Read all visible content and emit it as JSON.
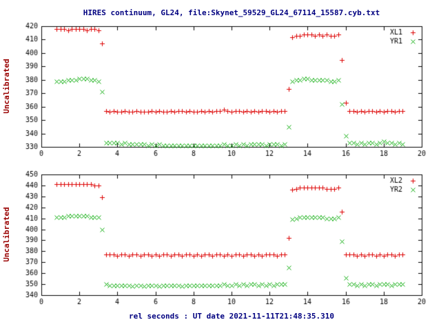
{
  "chart_data": [
    {
      "type": "scatter",
      "title": "HIRES continuum, GL24, file:Skynet_59529_GL24_67114_15587.cyb.txt",
      "ylabel": "Uncalibrated",
      "xlabel": "",
      "xlim": [
        0,
        20
      ],
      "ylim": [
        330,
        420
      ],
      "xticks": [
        0,
        2,
        4,
        6,
        8,
        10,
        12,
        14,
        16,
        18,
        20
      ],
      "yticks": [
        330,
        340,
        350,
        360,
        370,
        380,
        390,
        400,
        410,
        420
      ],
      "legend_position": "top-right",
      "grid": false,
      "x": [
        0.8,
        1.0,
        1.2,
        1.4,
        1.6,
        1.8,
        2.0,
        2.2,
        2.4,
        2.6,
        2.8,
        3.0,
        3.2,
        3.4,
        3.6,
        3.8,
        4.0,
        4.2,
        4.4,
        4.6,
        4.8,
        5.0,
        5.2,
        5.4,
        5.6,
        5.8,
        6.0,
        6.2,
        6.4,
        6.6,
        6.8,
        7.0,
        7.2,
        7.4,
        7.6,
        7.8,
        8.0,
        8.2,
        8.4,
        8.6,
        8.8,
        9.0,
        9.2,
        9.4,
        9.6,
        9.8,
        10.0,
        10.2,
        10.4,
        10.6,
        10.8,
        11.0,
        11.2,
        11.4,
        11.6,
        11.8,
        12.0,
        12.2,
        12.4,
        12.6,
        12.8,
        13.0,
        13.2,
        13.4,
        13.6,
        13.8,
        14.0,
        14.2,
        14.4,
        14.6,
        14.8,
        15.0,
        15.2,
        15.4,
        15.6,
        15.8,
        16.0,
        16.2,
        16.4,
        16.6,
        16.8,
        17.0,
        17.2,
        17.4,
        17.6,
        17.8,
        18.0,
        18.2,
        18.4,
        18.6,
        18.8,
        19.0
      ],
      "series": [
        {
          "name": "XL1",
          "marker": "plus",
          "color": "#dd0000",
          "y": [
            418,
            418,
            418,
            417,
            418,
            418,
            418,
            418,
            417,
            418,
            418,
            417,
            407,
            357,
            356,
            357,
            356,
            356,
            357,
            356,
            356,
            357,
            356,
            356,
            356,
            357,
            356,
            357,
            356,
            356,
            357,
            356,
            357,
            357,
            356,
            357,
            356,
            356,
            357,
            356,
            357,
            356,
            357,
            357,
            358,
            357,
            356,
            357,
            357,
            356,
            357,
            356,
            357,
            356,
            357,
            357,
            356,
            357,
            356,
            357,
            357,
            373,
            412,
            413,
            413,
            414,
            414,
            414,
            413,
            414,
            413,
            414,
            413,
            413,
            414,
            395,
            363,
            357,
            357,
            356,
            357,
            356,
            357,
            357,
            356,
            357,
            356,
            357,
            357,
            356,
            357,
            357
          ]
        },
        {
          "name": "YR1",
          "marker": "cross",
          "color": "#00a800",
          "y": [
            379,
            379,
            379,
            380,
            380,
            380,
            381,
            381,
            381,
            380,
            380,
            379,
            371,
            333,
            333,
            333,
            333,
            332,
            333,
            332,
            332,
            332,
            332,
            332,
            331,
            332,
            331,
            332,
            331,
            331,
            331,
            331,
            331,
            331,
            331,
            331,
            331,
            331,
            331,
            331,
            331,
            331,
            331,
            331,
            332,
            331,
            331,
            332,
            331,
            332,
            331,
            332,
            332,
            332,
            332,
            331,
            332,
            332,
            332,
            331,
            332,
            345,
            379,
            380,
            380,
            381,
            381,
            380,
            380,
            380,
            380,
            380,
            379,
            379,
            380,
            362,
            338,
            333,
            333,
            332,
            333,
            332,
            333,
            333,
            332,
            333,
            334,
            333,
            333,
            332,
            333,
            332
          ]
        }
      ]
    },
    {
      "type": "scatter",
      "title": "",
      "ylabel": "Uncalibrated",
      "xlabel": "rel seconds : UT date 2021-11-11T21:48:35.310",
      "xlim": [
        0,
        20
      ],
      "ylim": [
        340,
        450
      ],
      "xticks": [
        0,
        2,
        4,
        6,
        8,
        10,
        12,
        14,
        16,
        18,
        20
      ],
      "yticks": [
        340,
        350,
        360,
        370,
        380,
        390,
        400,
        410,
        420,
        430,
        440,
        450
      ],
      "legend_position": "top-right",
      "grid": false,
      "x": [
        0.8,
        1.0,
        1.2,
        1.4,
        1.6,
        1.8,
        2.0,
        2.2,
        2.4,
        2.6,
        2.8,
        3.0,
        3.2,
        3.4,
        3.6,
        3.8,
        4.0,
        4.2,
        4.4,
        4.6,
        4.8,
        5.0,
        5.2,
        5.4,
        5.6,
        5.8,
        6.0,
        6.2,
        6.4,
        6.6,
        6.8,
        7.0,
        7.2,
        7.4,
        7.6,
        7.8,
        8.0,
        8.2,
        8.4,
        8.6,
        8.8,
        9.0,
        9.2,
        9.4,
        9.6,
        9.8,
        10.0,
        10.2,
        10.4,
        10.6,
        10.8,
        11.0,
        11.2,
        11.4,
        11.6,
        11.8,
        12.0,
        12.2,
        12.4,
        12.6,
        12.8,
        13.0,
        13.2,
        13.4,
        13.6,
        13.8,
        14.0,
        14.2,
        14.4,
        14.6,
        14.8,
        15.0,
        15.2,
        15.4,
        15.6,
        15.8,
        16.0,
        16.2,
        16.4,
        16.6,
        16.8,
        17.0,
        17.2,
        17.4,
        17.6,
        17.8,
        18.0,
        18.2,
        18.4,
        18.6,
        18.8,
        19.0
      ],
      "series": [
        {
          "name": "XL2",
          "marker": "plus",
          "color": "#dd0000",
          "y": [
            441,
            441,
            441,
            441,
            441,
            441,
            441,
            441,
            441,
            441,
            440,
            440,
            429,
            377,
            377,
            377,
            376,
            377,
            377,
            376,
            377,
            377,
            376,
            377,
            377,
            376,
            377,
            376,
            377,
            377,
            376,
            377,
            377,
            376,
            377,
            377,
            376,
            377,
            376,
            377,
            377,
            376,
            377,
            377,
            376,
            377,
            376,
            377,
            377,
            376,
            377,
            377,
            376,
            377,
            376,
            377,
            377,
            377,
            376,
            377,
            377,
            392,
            436,
            437,
            438,
            438,
            438,
            438,
            438,
            438,
            438,
            437,
            437,
            437,
            438,
            416,
            377,
            377,
            377,
            376,
            377,
            376,
            377,
            377,
            376,
            377,
            376,
            377,
            377,
            376,
            377,
            377
          ]
        },
        {
          "name": "YR2",
          "marker": "cross",
          "color": "#00a800",
          "y": [
            411,
            411,
            411,
            412,
            412,
            412,
            412,
            412,
            412,
            411,
            411,
            411,
            400,
            350,
            349,
            349,
            349,
            349,
            349,
            349,
            348,
            349,
            349,
            348,
            349,
            349,
            349,
            348,
            349,
            349,
            349,
            349,
            349,
            348,
            349,
            349,
            349,
            349,
            349,
            349,
            349,
            349,
            349,
            349,
            350,
            349,
            349,
            350,
            349,
            350,
            349,
            350,
            350,
            349,
            350,
            349,
            350,
            349,
            350,
            350,
            350,
            365,
            409,
            410,
            411,
            411,
            411,
            411,
            411,
            411,
            411,
            410,
            410,
            410,
            411,
            389,
            356,
            350,
            350,
            349,
            350,
            349,
            350,
            350,
            349,
            350,
            350,
            350,
            349,
            350,
            350,
            350
          ]
        }
      ]
    }
  ],
  "colors": {
    "title": "#000080",
    "axis_label": "#990000",
    "frame": "#000000",
    "tick_text": "#000000"
  }
}
